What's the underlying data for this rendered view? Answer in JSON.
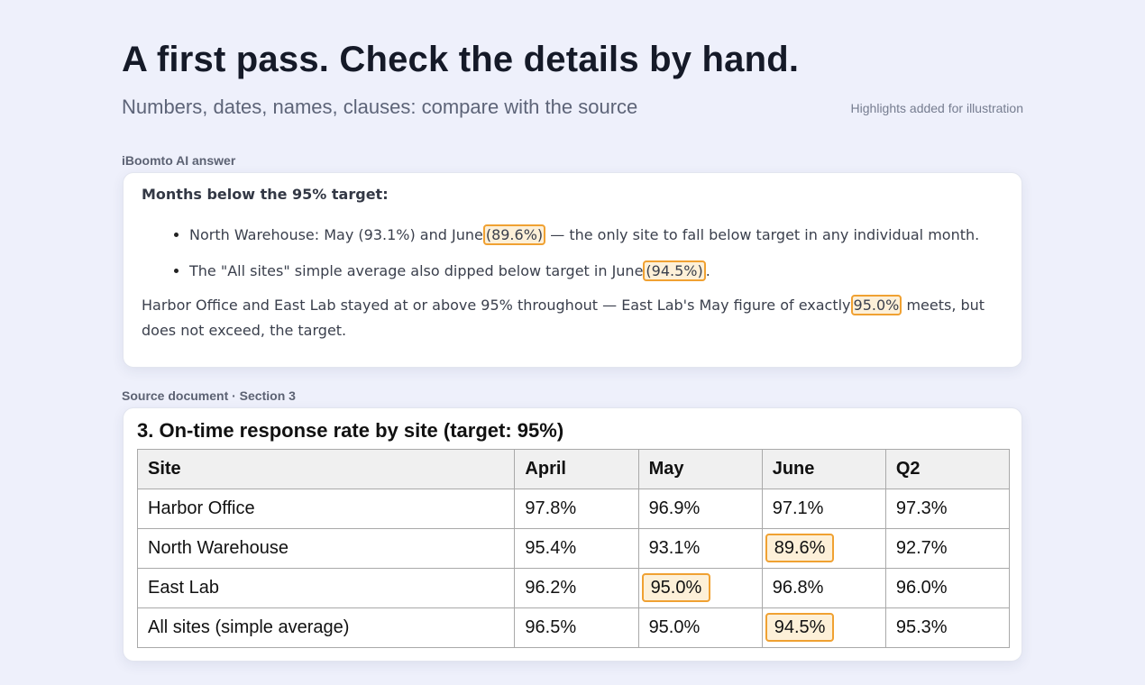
{
  "header": {
    "title": "A first pass. Check the details by hand.",
    "subtitle": "Numbers, dates, names, clauses: compare with the source",
    "note": "Highlights added for illustration"
  },
  "answer": {
    "label": "iBoomto AI answer",
    "heading": "Months below the 95% target:",
    "bullet1": {
      "before": "North Warehouse: May (93.1%) and June",
      "highlight": "(89.6%)",
      "after": "— the only site to fall below target in any individual month."
    },
    "bullet2": {
      "before": "The \"All sites\" simple average also dipped below target in June",
      "highlight": "(94.5%)",
      "after": "."
    },
    "para": {
      "before": "Harbor Office and East Lab stayed at or above 95% throughout — East Lab's May figure of exactly",
      "highlight": "95.0%",
      "after": "meets, but does not exceed, the target."
    }
  },
  "source": {
    "label": "Source document · Section 3",
    "heading": "3. On-time response rate by site (target: 95%)",
    "columns": [
      "Site",
      "April",
      "May",
      "June",
      "Q2"
    ],
    "rows": [
      [
        "Harbor Office",
        "97.8%",
        "96.9%",
        "97.1%",
        "97.3%"
      ],
      [
        "North Warehouse",
        "95.4%",
        "93.1%",
        "89.6%",
        "92.7%"
      ],
      [
        "East Lab",
        "96.2%",
        "95.0%",
        "96.8%",
        "96.0%"
      ],
      [
        "All sites (simple average)",
        "96.5%",
        "95.0%",
        "94.5%",
        "95.3%"
      ]
    ]
  },
  "colors": {
    "background": "#eef0fb",
    "highlight_fill": "#fdf0d8",
    "highlight_border": "#f0a132"
  }
}
